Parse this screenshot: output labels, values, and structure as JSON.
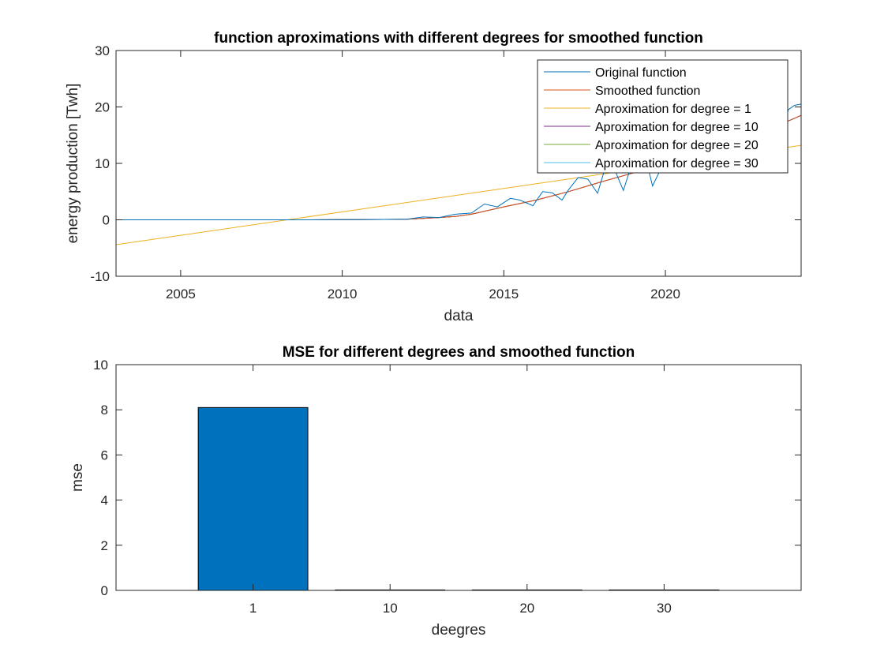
{
  "chart_data": [
    {
      "type": "line",
      "title": "function aproximations with different degrees for smoothed function",
      "xlabel": "data",
      "ylabel": "energy production [Twh]",
      "xlim": [
        2003,
        2024.2
      ],
      "ylim": [
        -10,
        30
      ],
      "xticks": [
        2005,
        2010,
        2015,
        2020
      ],
      "yticks": [
        -10,
        0,
        10,
        20,
        30
      ],
      "legend_position": "top-right",
      "series": [
        {
          "name": "Original function",
          "color": "#0072BD",
          "x": [
            2003,
            2006,
            2009,
            2012,
            2012.5,
            2013,
            2013.5,
            2014,
            2014.4,
            2014.8,
            2015.2,
            2015.5,
            2015.9,
            2016.2,
            2016.5,
            2016.8,
            2017.0,
            2017.3,
            2017.6,
            2017.9,
            2018.1,
            2018.4,
            2018.7,
            2018.9,
            2019.1,
            2019.4,
            2019.6,
            2019.9,
            2020.1,
            2020.4,
            2020.6,
            2020.9,
            2021.1,
            2021.4,
            2021.6,
            2021.9,
            2022.1,
            2022.4,
            2022.6,
            2022.9,
            2023.1,
            2023.4,
            2023.6,
            2023.8,
            2024.0,
            2024.2
          ],
          "y": [
            0,
            0,
            0,
            0.1,
            0.5,
            0.4,
            1.0,
            1.2,
            2.8,
            2.3,
            3.8,
            3.5,
            2.5,
            5.0,
            4.8,
            3.5,
            5.3,
            7.5,
            7.2,
            4.7,
            8.5,
            9.3,
            5.2,
            8.8,
            10.5,
            10.8,
            6.0,
            9.5,
            12.3,
            13.0,
            8.5,
            11.0,
            13.2,
            14.5,
            9.5,
            12.5,
            15.0,
            16.5,
            11.0,
            14.2,
            17.5,
            19.0,
            13.5,
            19.5,
            20.3,
            20.5
          ]
        },
        {
          "name": "Smoothed function",
          "color": "#D95319",
          "x": [
            2003,
            2006,
            2009,
            2012,
            2013,
            2013.5,
            2014,
            2015,
            2016,
            2017,
            2018,
            2019,
            2020,
            2021,
            2022,
            2023,
            2024.2
          ],
          "y": [
            0,
            0,
            0,
            0.1,
            0.4,
            0.6,
            1.0,
            2.3,
            3.5,
            5.0,
            6.7,
            8.3,
            10.0,
            11.5,
            13.3,
            15.5,
            18.5
          ]
        },
        {
          "name": "Aproximation for degree = 1",
          "color": "#EDB120",
          "x": [
            2003,
            2024.2
          ],
          "y": [
            -4.4,
            13.2
          ]
        },
        {
          "name": "Aproximation for degree = 10",
          "color": "#7E2F8E",
          "x": [
            2003,
            2006,
            2009,
            2012,
            2013,
            2013.5,
            2014,
            2015,
            2016,
            2017,
            2018,
            2019,
            2020,
            2021,
            2022,
            2023,
            2024.2
          ],
          "y": [
            0,
            0,
            0,
            0.1,
            0.4,
            0.6,
            1.0,
            2.3,
            3.5,
            5.0,
            6.7,
            8.3,
            10.0,
            11.5,
            13.3,
            15.5,
            18.5
          ]
        },
        {
          "name": "Aproximation for degree = 20",
          "color": "#77AC30",
          "x": [
            2003,
            2006,
            2009,
            2012,
            2013,
            2013.5,
            2014,
            2015,
            2016,
            2017,
            2018,
            2019,
            2020,
            2021,
            2022,
            2023,
            2024.2
          ],
          "y": [
            0,
            0,
            0,
            0.1,
            0.4,
            0.6,
            1.0,
            2.3,
            3.5,
            5.0,
            6.7,
            8.3,
            10.0,
            11.5,
            13.3,
            15.5,
            18.5
          ]
        },
        {
          "name": "Aproximation for degree = 30",
          "color": "#4DBEEE",
          "x": [
            2003,
            2006,
            2009,
            2012,
            2013,
            2013.5,
            2014,
            2015,
            2016,
            2017,
            2018,
            2019,
            2020,
            2021,
            2022,
            2023,
            2024.2
          ],
          "y": [
            0,
            0,
            0,
            0.1,
            0.4,
            0.6,
            1.0,
            2.3,
            3.5,
            5.0,
            6.7,
            8.3,
            10.0,
            11.5,
            13.3,
            15.5,
            18.5
          ]
        }
      ]
    },
    {
      "type": "bar",
      "title": "MSE for different degrees and smoothed function",
      "xlabel": "deegres",
      "ylabel": "mse",
      "categories": [
        "1",
        "10",
        "20",
        "30"
      ],
      "values": [
        8.1,
        0.02,
        0.02,
        0.02
      ],
      "ylim": [
        0,
        10
      ],
      "yticks": [
        0,
        2,
        4,
        6,
        8,
        10
      ],
      "bar_color": "#0072BD"
    }
  ]
}
